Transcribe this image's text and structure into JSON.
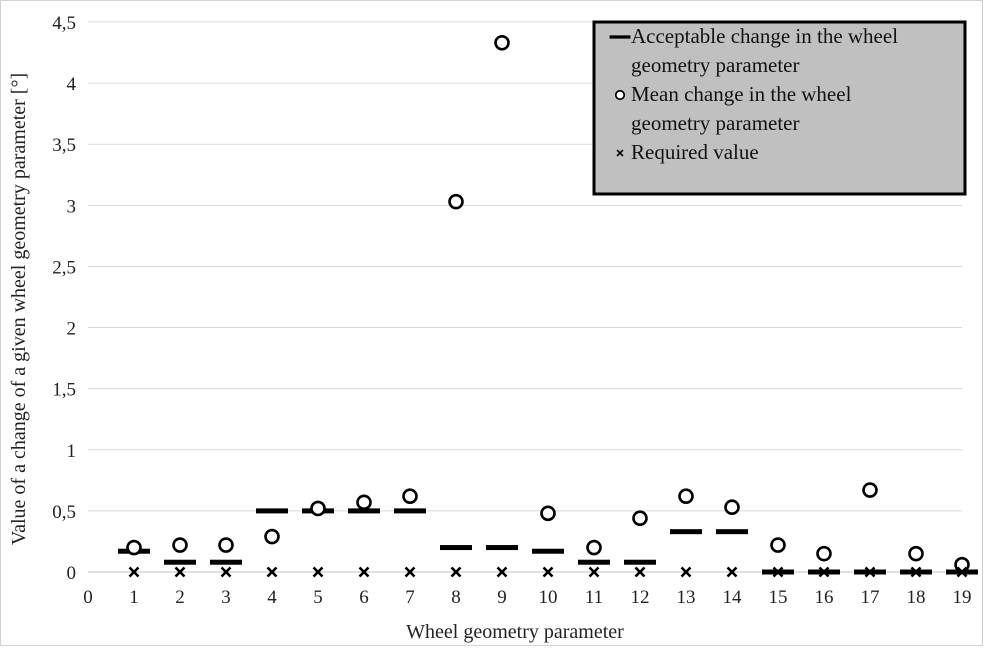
{
  "chart_data": {
    "type": "scatter",
    "xlabel": "Wheel geometry  parameter",
    "ylabel": "Value of a change of a given wheel geometry parameter [°]",
    "xlim": [
      0,
      19
    ],
    "ylim": [
      0,
      4.5
    ],
    "x_ticks": [
      "0",
      "1",
      "2",
      "3",
      "4",
      "5",
      "6",
      "7",
      "8",
      "9",
      "10",
      "11",
      "12",
      "13",
      "14",
      "15",
      "16",
      "17",
      "18",
      "19"
    ],
    "y_ticks": [
      "0",
      "0,5",
      "1",
      "1,5",
      "2",
      "2,5",
      "3",
      "3,5",
      "4",
      "4,5"
    ],
    "grid": "horizontal",
    "legend_position": "top-right",
    "x": [
      1,
      2,
      3,
      4,
      5,
      6,
      7,
      8,
      9,
      10,
      11,
      12,
      13,
      14,
      15,
      16,
      17,
      18,
      19
    ],
    "series": [
      {
        "name": "Acceptable change in the wheel geometry parameter",
        "legend_lines": [
          "Acceptable change in the wheel",
          "geometry parameter"
        ],
        "marker": "dash",
        "color": "#000000",
        "values": [
          0.17,
          0.08,
          0.08,
          0.5,
          0.5,
          0.5,
          0.5,
          0.2,
          0.2,
          0.17,
          0.08,
          0.08,
          0.33,
          0.33,
          0.0,
          0.0,
          0.0,
          0.0,
          0.0
        ]
      },
      {
        "name": "Mean change in the wheel geometry parameter",
        "legend_lines": [
          "Mean change in the wheel",
          "geometry parameter"
        ],
        "marker": "circle",
        "color": "#000000",
        "values": [
          0.2,
          0.22,
          0.22,
          0.29,
          0.52,
          0.57,
          0.62,
          3.03,
          4.33,
          0.48,
          0.2,
          0.44,
          0.62,
          0.53,
          0.22,
          0.15,
          0.67,
          0.15,
          0.06
        ]
      },
      {
        "name": "Required value",
        "legend_lines": [
          "Required value"
        ],
        "marker": "x",
        "color": "#000000",
        "values": [
          0,
          0,
          0,
          0,
          0,
          0,
          0,
          0,
          0,
          0,
          0,
          0,
          0,
          0,
          0,
          0,
          0,
          0,
          0
        ]
      }
    ],
    "legend_background": "#c0c0c0"
  }
}
